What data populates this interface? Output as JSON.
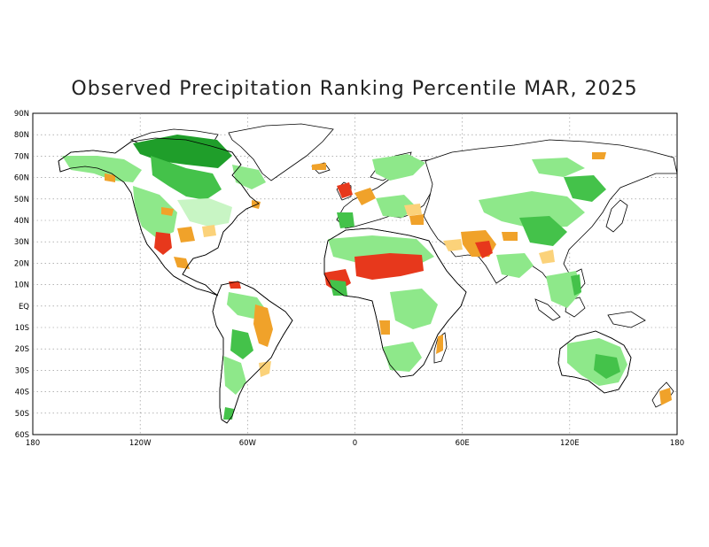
{
  "title": "Observed Precipitation Ranking Percentile MAR, 2025",
  "lat_labels": [
    "90N",
    "80N",
    "70N",
    "60N",
    "50N",
    "40N",
    "30N",
    "20N",
    "10N",
    "EQ",
    "10S",
    "20S",
    "30S",
    "40S",
    "50S",
    "60S"
  ],
  "lon_labels": [
    "180",
    "120W",
    "60W",
    "0",
    "60E",
    "120E",
    "180"
  ],
  "colors": {
    "very_wet": "#1f9e2a",
    "wet": "#44c24a",
    "moderately_wet": "#8ee88a",
    "slightly_wet": "#c8f5c4",
    "slightly_dry": "#fbd27a",
    "dry": "#f0a22a",
    "very_dry": "#e7381c",
    "ocean": "#ffffff",
    "coastline": "#000000"
  }
}
